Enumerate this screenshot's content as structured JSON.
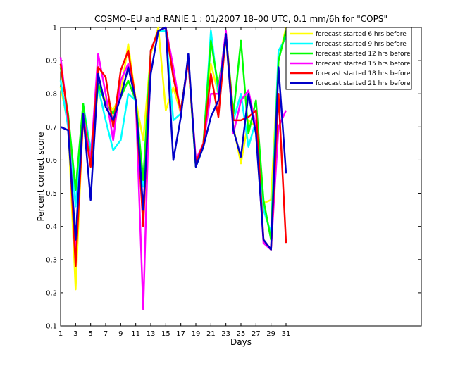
{
  "chart_data": {
    "type": "line",
    "title": "COSMO–EU and RANIE 1 : 01/2007 18–00 UTC, 0.1 mm/6h for \"COPS\"",
    "xlabel": "Days",
    "ylabel": "Percent correct score",
    "xlim": [
      1,
      49
    ],
    "ylim": [
      0.1,
      1
    ],
    "xticks": [
      1,
      3,
      5,
      7,
      9,
      11,
      13,
      15,
      17,
      19,
      21,
      23,
      25,
      27,
      29,
      31
    ],
    "yticks": [
      0.1,
      0.2,
      0.3,
      0.4,
      0.5,
      0.6,
      0.7,
      0.8,
      0.9,
      1
    ],
    "grid": false,
    "legend_position": "top-right",
    "x": [
      1,
      2,
      3,
      4,
      5,
      6,
      7,
      8,
      9,
      10,
      11,
      12,
      13,
      14,
      15,
      16,
      17,
      18,
      19,
      20,
      21,
      22,
      23,
      24,
      25,
      26,
      27,
      28,
      29,
      30,
      31
    ],
    "series": [
      {
        "name": "forecast started 6 hrs before",
        "color": "#ffff00",
        "values": [
          0.82,
          0.71,
          0.21,
          0.74,
          0.58,
          0.82,
          0.78,
          0.75,
          0.8,
          0.95,
          0.78,
          0.66,
          0.92,
          1.0,
          0.75,
          0.82,
          0.74,
          0.9,
          0.58,
          0.64,
          0.89,
          0.8,
          0.97,
          0.7,
          0.59,
          0.72,
          0.7,
          0.47,
          0.48,
          0.9,
          1.0
        ]
      },
      {
        "name": "forecast started 9 hrs before",
        "color": "#00ffff",
        "values": [
          0.84,
          0.7,
          0.46,
          0.77,
          0.63,
          0.82,
          0.72,
          0.63,
          0.66,
          0.8,
          0.78,
          0.52,
          0.93,
          0.99,
          0.99,
          0.72,
          0.74,
          0.9,
          0.58,
          0.64,
          0.99,
          0.8,
          0.98,
          0.72,
          0.8,
          0.64,
          0.72,
          0.45,
          0.38,
          0.93,
          0.97
        ]
      },
      {
        "name": "forecast started 12 hrs before",
        "color": "#00ff00",
        "values": [
          0.88,
          0.74,
          0.51,
          0.77,
          0.6,
          0.83,
          0.77,
          0.74,
          0.79,
          0.84,
          0.78,
          0.54,
          0.93,
          0.99,
          1.0,
          0.85,
          0.75,
          0.9,
          0.58,
          0.65,
          0.96,
          0.82,
          0.98,
          0.74,
          0.96,
          0.68,
          0.78,
          0.48,
          0.36,
          0.9,
          0.99
        ]
      },
      {
        "name": "forecast started 15 hrs before",
        "color": "#ff00ff",
        "values": [
          0.91,
          0.72,
          0.33,
          0.74,
          0.6,
          0.92,
          0.8,
          0.66,
          0.84,
          0.89,
          0.78,
          0.15,
          0.93,
          0.99,
          1.0,
          0.88,
          0.74,
          0.9,
          0.6,
          0.65,
          0.8,
          0.8,
          0.99,
          0.68,
          0.78,
          0.81,
          0.7,
          0.35,
          0.33,
          0.7,
          0.75
        ]
      },
      {
        "name": "forecast started 18 hrs before",
        "color": "#ff0000",
        "values": [
          0.89,
          0.73,
          0.28,
          0.73,
          0.58,
          0.88,
          0.85,
          0.7,
          0.87,
          0.93,
          0.78,
          0.4,
          0.93,
          0.99,
          1.0,
          0.85,
          0.75,
          0.9,
          0.59,
          0.65,
          0.86,
          0.73,
          0.98,
          0.72,
          0.72,
          0.73,
          0.75,
          0.36,
          0.33,
          0.8,
          0.35
        ]
      },
      {
        "name": "forecast started 21 hrs before",
        "color": "#0000c8",
        "values": [
          0.7,
          0.69,
          0.36,
          0.74,
          0.48,
          0.86,
          0.76,
          0.72,
          0.79,
          0.88,
          0.78,
          0.45,
          0.86,
          0.99,
          1.0,
          0.6,
          0.73,
          0.92,
          0.58,
          0.64,
          0.73,
          0.78,
          0.98,
          0.69,
          0.61,
          0.8,
          0.68,
          0.36,
          0.33,
          0.88,
          0.56
        ]
      }
    ]
  }
}
